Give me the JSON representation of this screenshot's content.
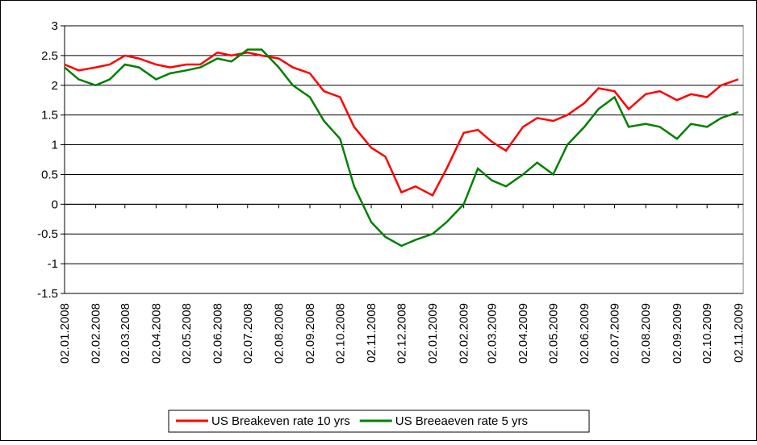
{
  "chart_data": {
    "type": "line",
    "x": [
      "02.01.2008",
      "16.01.2008",
      "02.02.2008",
      "16.02.2008",
      "02.03.2008",
      "16.03.2008",
      "02.04.2008",
      "16.04.2008",
      "02.05.2008",
      "16.05.2008",
      "02.06.2008",
      "16.06.2008",
      "02.07.2008",
      "16.07.2008",
      "02.08.2008",
      "16.08.2008",
      "02.09.2008",
      "16.09.2008",
      "02.10.2008",
      "16.10.2008",
      "02.11.2008",
      "16.11.2008",
      "02.12.2008",
      "16.12.2008",
      "02.01.2009",
      "16.01.2009",
      "02.02.2009",
      "16.02.2009",
      "02.03.2009",
      "16.03.2009",
      "02.04.2009",
      "16.04.2009",
      "02.05.2009",
      "16.05.2009",
      "02.06.2009",
      "16.06.2009",
      "02.07.2009",
      "16.07.2009",
      "02.08.2009",
      "16.08.2009",
      "02.09.2009",
      "16.09.2009",
      "02.10.2009",
      "16.10.2009",
      "02.11.2009"
    ],
    "series": [
      {
        "name": "US Breakeven rate 10 yrs",
        "color": "#ff0000",
        "values": [
          2.35,
          2.25,
          2.3,
          2.35,
          2.5,
          2.45,
          2.35,
          2.3,
          2.35,
          2.35,
          2.55,
          2.5,
          2.55,
          2.5,
          2.45,
          2.3,
          2.2,
          1.9,
          1.8,
          1.3,
          0.95,
          0.8,
          0.2,
          0.3,
          0.15,
          0.6,
          1.2,
          1.25,
          1.05,
          0.9,
          1.3,
          1.45,
          1.4,
          1.5,
          1.7,
          1.95,
          1.9,
          1.6,
          1.85,
          1.9,
          1.75,
          1.85,
          1.8,
          2.0,
          2.1
        ]
      },
      {
        "name": "US Breeaeven rate 5 yrs",
        "color": "#008000",
        "values": [
          2.3,
          2.1,
          2.0,
          2.1,
          2.35,
          2.3,
          2.1,
          2.2,
          2.25,
          2.3,
          2.45,
          2.4,
          2.6,
          2.6,
          2.3,
          2.0,
          1.8,
          1.4,
          1.1,
          0.3,
          -0.3,
          -0.55,
          -0.7,
          -0.6,
          -0.5,
          -0.3,
          0.0,
          0.6,
          0.4,
          0.3,
          0.5,
          0.7,
          0.5,
          1.0,
          1.3,
          1.6,
          1.8,
          1.3,
          1.35,
          1.3,
          1.1,
          1.35,
          1.3,
          1.45,
          1.55
        ]
      }
    ],
    "xlim": [
      "02.01.2008",
      "07.11.2009"
    ],
    "xticks": [
      "02.01.2008",
      "02.02.2008",
      "02.03.2008",
      "02.04.2008",
      "02.05.2008",
      "02.06.2008",
      "02.07.2008",
      "02.08.2008",
      "02.09.2008",
      "02.10.2008",
      "02.11.2008",
      "02.12.2008",
      "02.01.2009",
      "02.02.2009",
      "02.03.2009",
      "02.04.2009",
      "02.05.2009",
      "02.06.2009",
      "02.07.2009",
      "02.08.2009",
      "02.09.2009",
      "02.10.2009",
      "02.11.2009"
    ],
    "ylim": [
      -1.5,
      3
    ],
    "yticks": [
      -1.5,
      -1,
      -0.5,
      0,
      0.5,
      1,
      1.5,
      2,
      2.5,
      3
    ],
    "grid": true,
    "legend": "bottom"
  }
}
